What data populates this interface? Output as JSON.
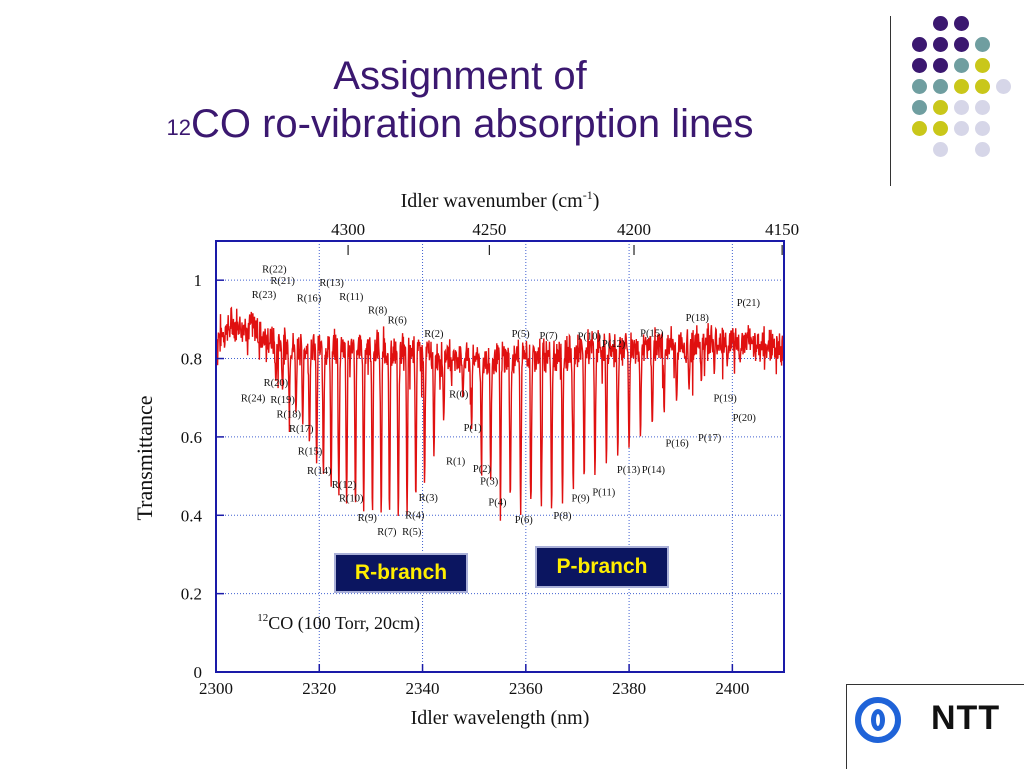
{
  "slide": {
    "title_line1": "Assignment of",
    "title_sup": "12",
    "title_line2": "CO ro-vibration absorption lines",
    "r_branch": "R-branch",
    "p_branch": "P-branch",
    "logo_text": "NTT",
    "accent": "#3b1870"
  },
  "dots": {
    "colors": {
      "purple": "#3b1870",
      "teal": "#6f9ea0",
      "yellow": "#c9c71a",
      "lavender": "#d6d6e8"
    }
  },
  "chart_data": {
    "type": "line",
    "top_axis_label": "Idler wavenumber (cm",
    "top_axis_label_sup": "-1",
    "top_axis_label_end": ")",
    "top_ticks": [
      "4300",
      "4250",
      "4200",
      "4150"
    ],
    "xlabel": "Idler wavelength (nm)",
    "ylabel": "Transmittance",
    "x_ticks": [
      "2300",
      "2320",
      "2340",
      "2360",
      "2380",
      "2400"
    ],
    "y_ticks": [
      "0",
      "0.2",
      "0.4",
      "0.6",
      "0.8",
      "1"
    ],
    "xlim": [
      2300,
      2410
    ],
    "ylim": [
      0,
      1.1
    ],
    "grid": true,
    "annotation_sup": "12",
    "annotation": "CO (100 Torr, 20cm)",
    "line_color": "#e01010",
    "baseline": 0.83,
    "absorption_lines": [
      {
        "x": 2311.6,
        "y": 0.74
      },
      {
        "x": 2312.9,
        "y": 0.72
      },
      {
        "x": 2314.2,
        "y": 0.69
      },
      {
        "x": 2315.5,
        "y": 0.66
      },
      {
        "x": 2316.8,
        "y": 0.63
      },
      {
        "x": 2318.1,
        "y": 0.58
      },
      {
        "x": 2319.5,
        "y": 0.53
      },
      {
        "x": 2320.8,
        "y": 0.5
      },
      {
        "x": 2322.3,
        "y": 0.47
      },
      {
        "x": 2323.8,
        "y": 0.45
      },
      {
        "x": 2325.3,
        "y": 0.43
      },
      {
        "x": 2327.0,
        "y": 0.42
      },
      {
        "x": 2328.6,
        "y": 0.41
      },
      {
        "x": 2330.3,
        "y": 0.4
      },
      {
        "x": 2332.0,
        "y": 0.4
      },
      {
        "x": 2333.6,
        "y": 0.4
      },
      {
        "x": 2335.3,
        "y": 0.39
      },
      {
        "x": 2337.0,
        "y": 0.4
      },
      {
        "x": 2338.7,
        "y": 0.44
      },
      {
        "x": 2340.4,
        "y": 0.48
      },
      {
        "x": 2342.2,
        "y": 0.55
      },
      {
        "x": 2344.1,
        "y": 0.64
      },
      {
        "x": 2347.8,
        "y": 0.7
      },
      {
        "x": 2349.5,
        "y": 0.62
      },
      {
        "x": 2351.4,
        "y": 0.54
      },
      {
        "x": 2353.2,
        "y": 0.49
      },
      {
        "x": 2355.1,
        "y": 0.46
      },
      {
        "x": 2357.0,
        "y": 0.44
      },
      {
        "x": 2359.0,
        "y": 0.4
      },
      {
        "x": 2361.0,
        "y": 0.43
      },
      {
        "x": 2363.0,
        "y": 0.42
      },
      {
        "x": 2365.0,
        "y": 0.41
      },
      {
        "x": 2367.1,
        "y": 0.43
      },
      {
        "x": 2369.2,
        "y": 0.46
      },
      {
        "x": 2371.3,
        "y": 0.49
      },
      {
        "x": 2373.4,
        "y": 0.5
      },
      {
        "x": 2375.6,
        "y": 0.53
      },
      {
        "x": 2377.8,
        "y": 0.55
      },
      {
        "x": 2380.0,
        "y": 0.57
      },
      {
        "x": 2382.2,
        "y": 0.6
      },
      {
        "x": 2384.5,
        "y": 0.63
      },
      {
        "x": 2386.8,
        "y": 0.66
      },
      {
        "x": 2389.2,
        "y": 0.69
      },
      {
        "x": 2391.6,
        "y": 0.72
      },
      {
        "x": 2394.0,
        "y": 0.74
      },
      {
        "x": 2396.5,
        "y": 0.76
      },
      {
        "x": 2399.0,
        "y": 0.78
      },
      {
        "x": 2401.5,
        "y": 0.79
      }
    ],
    "line_labels": [
      {
        "text": "R(22)",
        "x": 2311.3,
        "y": 1.02
      },
      {
        "text": "R(21)",
        "x": 2312.9,
        "y": 0.99
      },
      {
        "text": "R(23)",
        "x": 2309.3,
        "y": 0.955
      },
      {
        "text": "R(13)",
        "x": 2322.4,
        "y": 0.985
      },
      {
        "text": "R(16)",
        "x": 2318.0,
        "y": 0.945
      },
      {
        "text": "R(11)",
        "x": 2326.2,
        "y": 0.95
      },
      {
        "text": "R(8)",
        "x": 2331.3,
        "y": 0.915
      },
      {
        "text": "R(6)",
        "x": 2335.1,
        "y": 0.89
      },
      {
        "text": "R(2)",
        "x": 2342.2,
        "y": 0.855
      },
      {
        "text": "P(5)",
        "x": 2359.0,
        "y": 0.855
      },
      {
        "text": "P(7)",
        "x": 2364.4,
        "y": 0.85
      },
      {
        "text": "P(10)",
        "x": 2372.3,
        "y": 0.848
      },
      {
        "text": "P(12)",
        "x": 2377.0,
        "y": 0.83
      },
      {
        "text": "P(15)",
        "x": 2384.4,
        "y": 0.856
      },
      {
        "text": "P(18)",
        "x": 2393.2,
        "y": 0.896
      },
      {
        "text": "P(21)",
        "x": 2403.1,
        "y": 0.934
      },
      {
        "text": "R(20)",
        "x": 2311.6,
        "y": 0.73
      },
      {
        "text": "R(24)",
        "x": 2307.2,
        "y": 0.69
      },
      {
        "text": "R(19)",
        "x": 2312.9,
        "y": 0.687
      },
      {
        "text": "R(18)",
        "x": 2314.1,
        "y": 0.65
      },
      {
        "text": "R(17)",
        "x": 2316.5,
        "y": 0.612
      },
      {
        "text": "R(15)",
        "x": 2318.2,
        "y": 0.555
      },
      {
        "text": "R(14)",
        "x": 2320.0,
        "y": 0.505
      },
      {
        "text": "R(12)",
        "x": 2324.8,
        "y": 0.47
      },
      {
        "text": "R(10)",
        "x": 2326.2,
        "y": 0.435
      },
      {
        "text": "R(9)",
        "x": 2329.3,
        "y": 0.385
      },
      {
        "text": "R(7)",
        "x": 2333.1,
        "y": 0.35
      },
      {
        "text": "R(5)",
        "x": 2337.9,
        "y": 0.35
      },
      {
        "text": "R(4)",
        "x": 2338.5,
        "y": 0.392
      },
      {
        "text": "R(3)",
        "x": 2341.1,
        "y": 0.437
      },
      {
        "text": "R(0)",
        "x": 2347.0,
        "y": 0.7
      },
      {
        "text": "P(1)",
        "x": 2349.7,
        "y": 0.615
      },
      {
        "text": "R(1)",
        "x": 2346.4,
        "y": 0.53
      },
      {
        "text": "P(2)",
        "x": 2351.5,
        "y": 0.51
      },
      {
        "text": "P(3)",
        "x": 2352.9,
        "y": 0.478
      },
      {
        "text": "P(4)",
        "x": 2354.5,
        "y": 0.425
      },
      {
        "text": "P(6)",
        "x": 2359.6,
        "y": 0.38
      },
      {
        "text": "P(8)",
        "x": 2367.1,
        "y": 0.39
      },
      {
        "text": "P(9)",
        "x": 2370.6,
        "y": 0.435
      },
      {
        "text": "P(11)",
        "x": 2375.1,
        "y": 0.45
      },
      {
        "text": "P(13)",
        "x": 2379.9,
        "y": 0.508
      },
      {
        "text": "P(14)",
        "x": 2384.7,
        "y": 0.508
      },
      {
        "text": "P(16)",
        "x": 2389.3,
        "y": 0.575
      },
      {
        "text": "P(17)",
        "x": 2395.6,
        "y": 0.59
      },
      {
        "text": "P(19)",
        "x": 2398.6,
        "y": 0.69
      },
      {
        "text": "P(20)",
        "x": 2402.3,
        "y": 0.64
      }
    ]
  }
}
